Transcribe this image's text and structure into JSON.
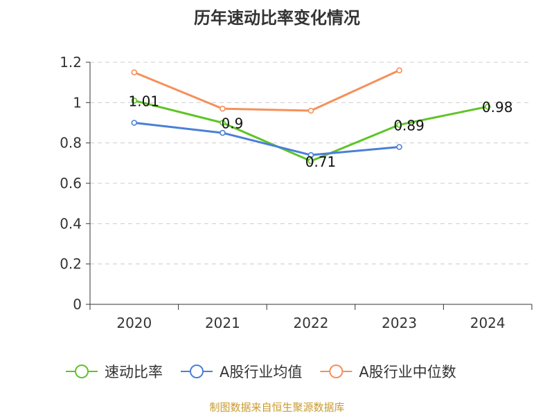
{
  "chart_data": {
    "type": "line",
    "title": "历年速动比率变化情况",
    "x": [
      "2020",
      "2021",
      "2022",
      "2023",
      "2024"
    ],
    "ylim": [
      0,
      1.2
    ],
    "yticks": [
      "0",
      "0.2",
      "0.4",
      "0.6",
      "0.8",
      "1",
      "1.2"
    ],
    "grid": true,
    "legend_position": "bottom",
    "series": [
      {
        "name": "速动比率",
        "color": "#5ec427",
        "values": [
          1.01,
          0.9,
          0.71,
          0.89,
          0.98
        ],
        "labels": [
          "1.01",
          "0.9",
          "0.71",
          "0.89",
          "0.98"
        ]
      },
      {
        "name": "A股行业均值",
        "color": "#4a7fd8",
        "values": [
          0.9,
          0.85,
          0.74,
          0.78,
          null
        ],
        "labels": []
      },
      {
        "name": "A股行业中位数",
        "color": "#f5905a",
        "values": [
          1.15,
          0.97,
          0.96,
          1.16,
          null
        ],
        "labels": []
      }
    ]
  },
  "source_text": "制图数据来自恒生聚源数据库"
}
